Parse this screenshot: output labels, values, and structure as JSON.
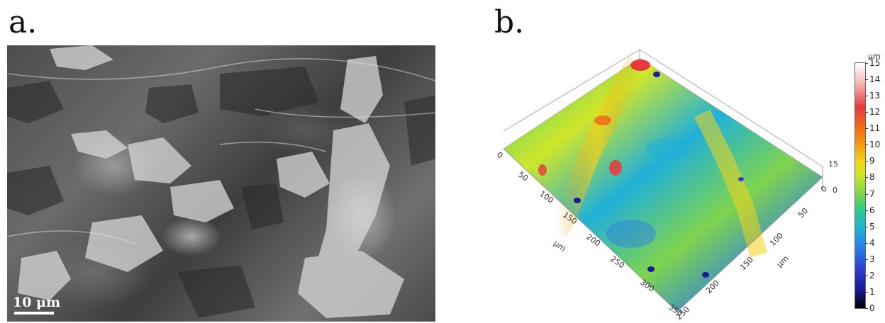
{
  "panels": {
    "a": {
      "label": "a.",
      "scale_bar": "10 μm"
    },
    "b": {
      "label": "b.",
      "x_axis_ticks": [
        "0",
        "50",
        "100",
        "150",
        "200",
        "250",
        "300",
        "350"
      ],
      "x_axis_unit": "μm",
      "y_axis_ticks": [
        "0",
        "50",
        "100",
        "150",
        "200",
        "250"
      ],
      "y_axis_unit": "μm",
      "z_axis_ticks": [
        "0",
        "15"
      ],
      "colorbar": {
        "unit": "μm",
        "ticks": [
          "15",
          "14",
          "13",
          "12",
          "11",
          "10",
          "9",
          "8",
          "7",
          "6",
          "5",
          "4",
          "3",
          "2",
          "1",
          "0"
        ]
      }
    }
  }
}
